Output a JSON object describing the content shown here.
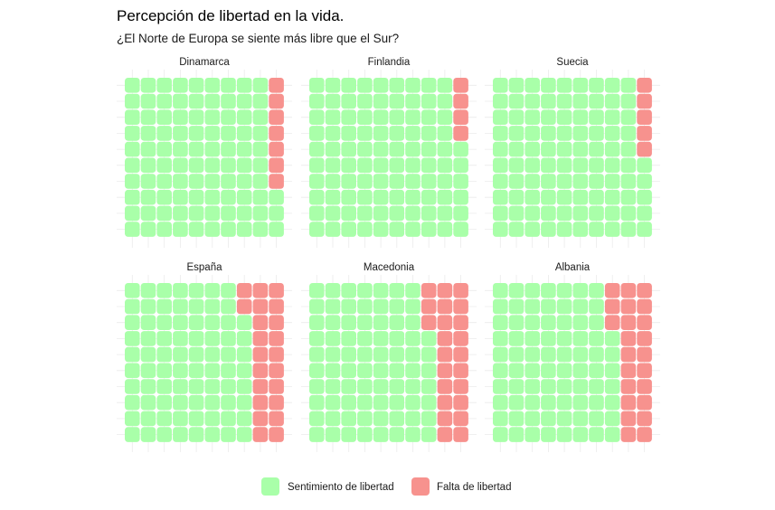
{
  "chart_data": {
    "type": "waffle",
    "title": "Percepción de libertad en la vida.",
    "subtitle": "¿El Norte de Europa se siente más libre que el Sur?",
    "grid": true,
    "legend_position": "bottom",
    "units_per_panel": 100,
    "series": [
      {
        "name": "Sentimiento de libertad",
        "color": "#a9ffa9"
      },
      {
        "name": "Falta de libertad",
        "color": "#f7928e"
      }
    ],
    "panels": [
      {
        "name": "Dinamarca",
        "libertad": 93,
        "falta": 7
      },
      {
        "name": "Finlandia",
        "libertad": 96,
        "falta": 4
      },
      {
        "name": "Suecia",
        "libertad": 95,
        "falta": 5
      },
      {
        "name": "España",
        "libertad": 78,
        "falta": 22
      },
      {
        "name": "Macedonia",
        "libertad": 77,
        "falta": 23
      },
      {
        "name": "Albania",
        "libertad": 77,
        "falta": 23
      }
    ]
  }
}
